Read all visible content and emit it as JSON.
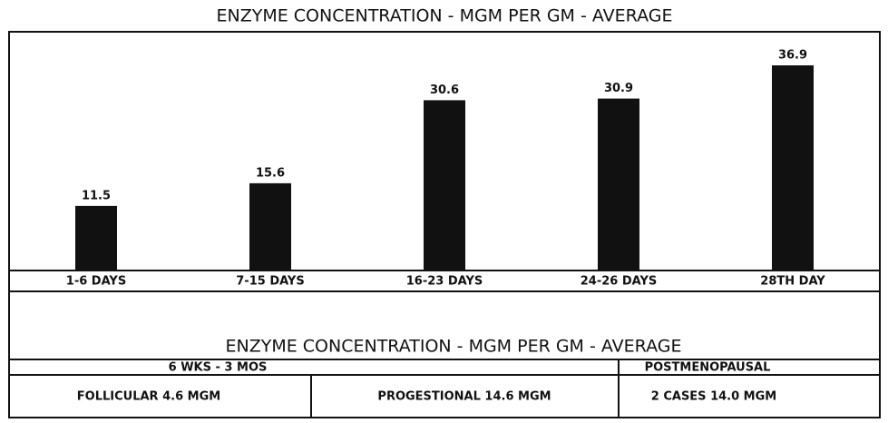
{
  "chart_data": {
    "type": "bar",
    "title": "ENZYME CONCENTRATION - MGM PER GM - AVERAGE",
    "categories": [
      "1-6 DAYS",
      "7-15 DAYS",
      "16-23 DAYS",
      "24-26 DAYS",
      "28TH DAY"
    ],
    "values": [
      11.5,
      15.6,
      30.6,
      30.9,
      36.9
    ],
    "color": "#111111"
  },
  "table": {
    "title": "ENZYME CONCENTRATION - MGM PER GM - AVERAGE",
    "headers": [
      "6 WKS - 3 MOS",
      "POSTMENOPAUSAL"
    ],
    "rows": [
      [
        "FOLLICULAR 4.6 MGM",
        "PROGESTIONAL 14.6 MGM",
        "2 CASES 14.0 MGM"
      ]
    ]
  }
}
